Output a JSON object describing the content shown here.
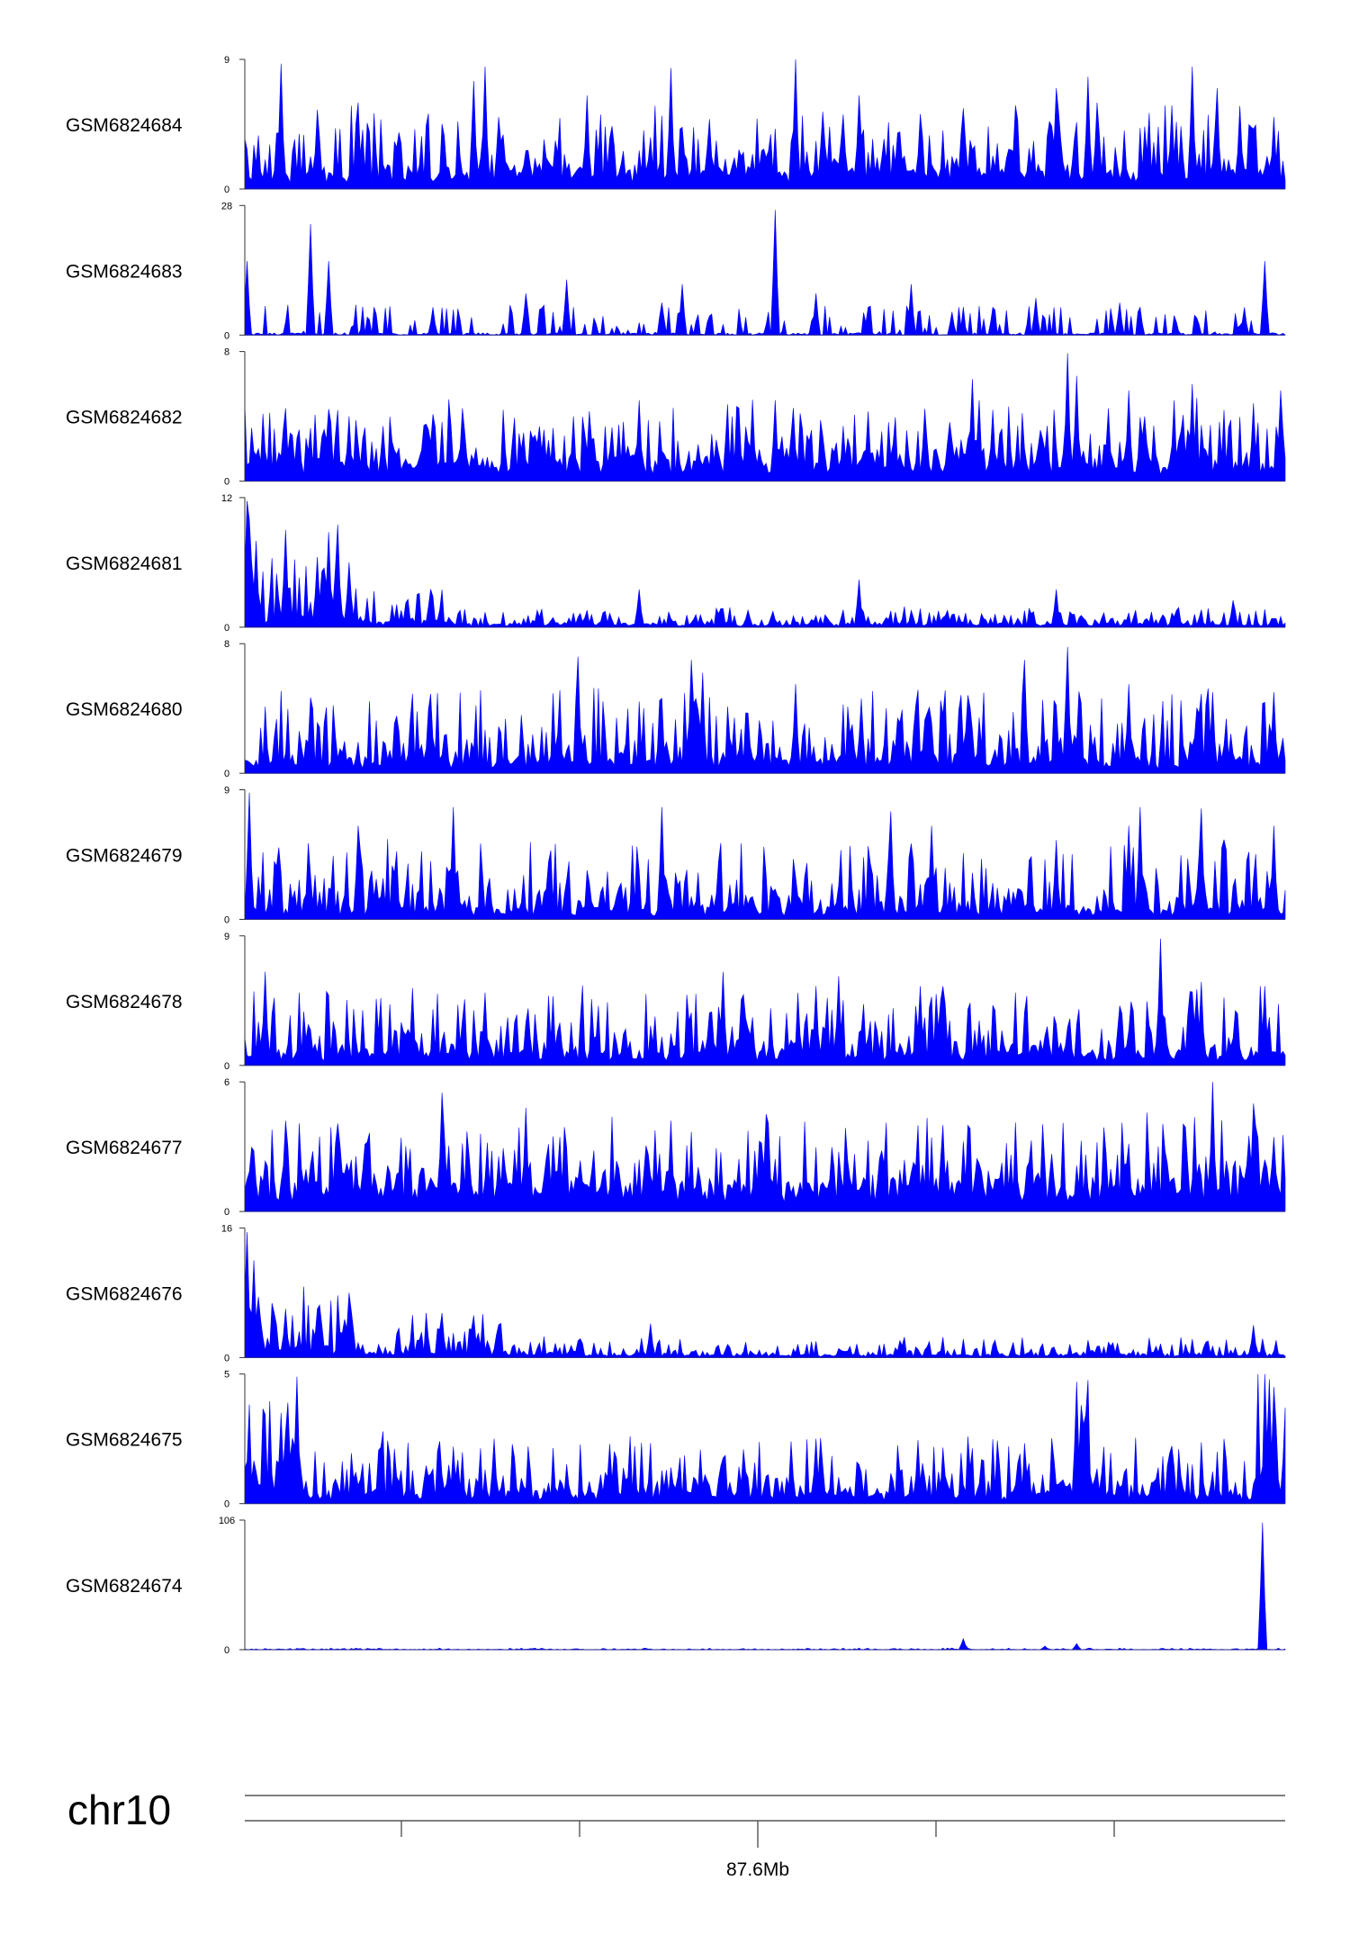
{
  "chart_data": {
    "type": "area",
    "chromosome": "chr10",
    "color": "#0000ff",
    "coordinate_label": "87.6Mb",
    "tracks": [
      {
        "name": "GSM6824684",
        "ymin": 0,
        "ymax": 9,
        "profile": "uniform",
        "baseline": 1.0,
        "noise": 1.5,
        "spikes": [
          [
            0.035,
            8.7
          ],
          [
            0.07,
            5.5
          ],
          [
            0.11,
            6.0
          ],
          [
            0.22,
            7.5
          ],
          [
            0.23,
            8.5
          ],
          [
            0.245,
            5.0
          ],
          [
            0.33,
            6.5
          ],
          [
            0.41,
            8.4
          ],
          [
            0.53,
            9.0
          ],
          [
            0.59,
            6.5
          ],
          [
            0.65,
            5.2
          ],
          [
            0.74,
            5.8
          ],
          [
            0.78,
            7.0
          ],
          [
            0.81,
            7.8
          ],
          [
            0.82,
            6.0
          ],
          [
            0.89,
            5.8
          ],
          [
            0.91,
            8.5
          ],
          [
            0.935,
            7.0
          ],
          [
            0.99,
            5.0
          ]
        ]
      },
      {
        "name": "GSM6824683",
        "ymin": 0,
        "ymax": 28,
        "profile": "sparse",
        "baseline": 0.5,
        "noise": 3.0,
        "spikes": [
          [
            0.003,
            16
          ],
          [
            0.063,
            24
          ],
          [
            0.08,
            16
          ],
          [
            0.18,
            6
          ],
          [
            0.27,
            9
          ],
          [
            0.31,
            12
          ],
          [
            0.4,
            9
          ],
          [
            0.42,
            11
          ],
          [
            0.4,
            7
          ],
          [
            0.51,
            27
          ],
          [
            0.55,
            9
          ],
          [
            0.6,
            6
          ],
          [
            0.64,
            11
          ],
          [
            0.68,
            5
          ],
          [
            0.72,
            6
          ],
          [
            0.76,
            8
          ],
          [
            0.84,
            7
          ],
          [
            0.86,
            6
          ],
          [
            0.96,
            6
          ],
          [
            0.98,
            16
          ]
        ]
      },
      {
        "name": "GSM6824682",
        "ymin": 0,
        "ymax": 8,
        "profile": "uniform",
        "baseline": 1.0,
        "noise": 1.3,
        "spikes": [
          [
            0.04,
            4.5
          ],
          [
            0.1,
            4.0
          ],
          [
            0.21,
            4.5
          ],
          [
            0.38,
            4.2
          ],
          [
            0.38,
            5.0
          ],
          [
            0.51,
            5.0
          ],
          [
            0.6,
            4.3
          ],
          [
            0.7,
            6.3
          ],
          [
            0.72,
            4.4
          ],
          [
            0.79,
            7.9
          ],
          [
            0.8,
            6.5
          ],
          [
            0.83,
            4.5
          ],
          [
            0.85,
            5.6
          ],
          [
            0.91,
            6.0
          ],
          [
            0.97,
            4.8
          ],
          [
            0.995,
            5.6
          ]
        ]
      },
      {
        "name": "GSM6824681",
        "ymin": 0,
        "ymax": 12,
        "profile": "left-heavy",
        "baseline": 0.3,
        "noise": 0.8,
        "spikes": [
          [
            0.002,
            11.7
          ],
          [
            0.005,
            10.0
          ],
          [
            0.01,
            8.0
          ],
          [
            0.04,
            9.0
          ],
          [
            0.07,
            6.5
          ],
          [
            0.08,
            8.8
          ],
          [
            0.09,
            9.5
          ],
          [
            0.1,
            6.0
          ],
          [
            0.38,
            3.5
          ],
          [
            0.59,
            4.4
          ],
          [
            0.78,
            3.5
          ],
          [
            0.95,
            2.5
          ]
        ]
      },
      {
        "name": "GSM6824680",
        "ymin": 0,
        "ymax": 8,
        "profile": "uniform",
        "baseline": 0.6,
        "noise": 1.6,
        "spikes": [
          [
            0.32,
            7.2
          ],
          [
            0.43,
            7.0
          ],
          [
            0.44,
            6.2
          ],
          [
            0.53,
            5.5
          ],
          [
            0.75,
            7.0
          ],
          [
            0.79,
            7.8
          ],
          [
            0.85,
            5.5
          ],
          [
            0.93,
            5.0
          ],
          [
            0.99,
            5.0
          ]
        ]
      },
      {
        "name": "GSM6824679",
        "ymin": 0,
        "ymax": 9,
        "profile": "uniform",
        "baseline": 0.6,
        "noise": 1.6,
        "spikes": [
          [
            0.005,
            8.8
          ],
          [
            0.11,
            6.5
          ],
          [
            0.2,
            6.0
          ],
          [
            0.2,
            7.5
          ],
          [
            0.2,
            7.8
          ],
          [
            0.4,
            6.0
          ],
          [
            0.4,
            7.8
          ],
          [
            0.62,
            7.5
          ],
          [
            0.66,
            6.5
          ],
          [
            0.78,
            5.5
          ],
          [
            0.85,
            6.5
          ],
          [
            0.86,
            7.8
          ],
          [
            0.92,
            7.7
          ],
          [
            0.99,
            6.5
          ]
        ]
      },
      {
        "name": "GSM6824678",
        "ymin": 0,
        "ymax": 9,
        "profile": "uniform",
        "baseline": 0.7,
        "noise": 1.6,
        "spikes": [
          [
            0.02,
            6.5
          ],
          [
            0.46,
            6.5
          ],
          [
            0.55,
            5.5
          ],
          [
            0.57,
            6.2
          ],
          [
            0.65,
            5.5
          ],
          [
            0.67,
            5.5
          ],
          [
            0.88,
            8.8
          ],
          [
            0.92,
            5.8
          ],
          [
            0.98,
            5.5
          ]
        ]
      },
      {
        "name": "GSM6824677",
        "ymin": 0,
        "ymax": 6,
        "profile": "uniform",
        "baseline": 1.0,
        "noise": 1.2,
        "spikes": [
          [
            0.04,
            4.2
          ],
          [
            0.19,
            5.5
          ],
          [
            0.27,
            4.8
          ],
          [
            0.41,
            4.2
          ],
          [
            0.5,
            4.5
          ],
          [
            0.67,
            4.0
          ],
          [
            0.93,
            6.0
          ],
          [
            0.97,
            5.0
          ]
        ]
      },
      {
        "name": "GSM6824676",
        "ymin": 0,
        "ymax": 16,
        "profile": "left-heavy-2",
        "baseline": 0.4,
        "noise": 1.3,
        "spikes": [
          [
            0.002,
            15.5
          ],
          [
            0.008,
            12.0
          ],
          [
            0.012,
            7.5
          ],
          [
            0.04,
            6.0
          ],
          [
            0.07,
            6.0
          ],
          [
            0.1,
            8.0
          ],
          [
            0.19,
            5.5
          ],
          [
            0.22,
            5.2
          ],
          [
            0.39,
            4.2
          ],
          [
            0.97,
            4.0
          ]
        ]
      },
      {
        "name": "GSM6824675",
        "ymin": 0,
        "ymax": 5,
        "profile": "edges",
        "baseline": 0.3,
        "noise": 0.8,
        "spikes": [
          [
            0.035,
            3.5
          ],
          [
            0.05,
            4.9
          ],
          [
            0.24,
            2.5
          ],
          [
            0.35,
            2.3
          ],
          [
            0.55,
            2.5
          ],
          [
            0.8,
            4.7
          ],
          [
            0.805,
            3.8
          ],
          [
            0.985,
            4.8
          ],
          [
            0.99,
            4.5
          ],
          [
            0.999,
            3.7
          ]
        ]
      },
      {
        "name": "GSM6824674",
        "ymin": 0,
        "ymax": 106,
        "profile": "flat",
        "baseline": 0.4,
        "noise": 1.0,
        "spikes": [
          [
            0.69,
            9.0
          ],
          [
            0.77,
            3.0
          ],
          [
            0.8,
            5.0
          ],
          [
            0.978,
            104.0
          ]
        ]
      }
    ]
  }
}
